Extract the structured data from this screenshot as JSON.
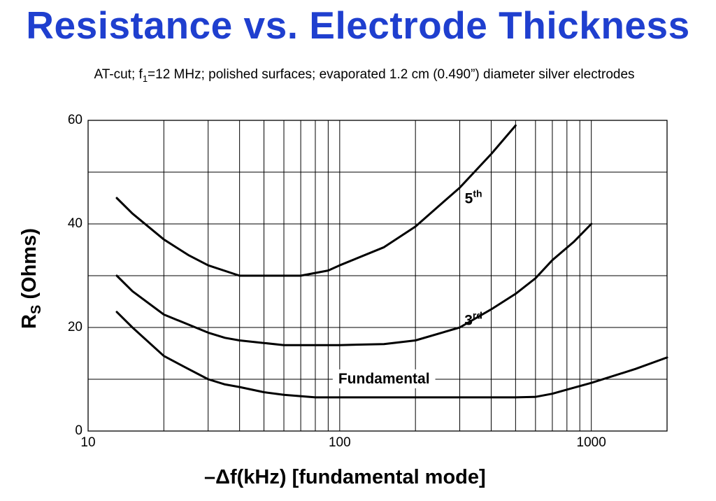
{
  "title": "Resistance vs. Electrode Thickness",
  "subtitle": {
    "before": "AT-cut; f",
    "sub": "1",
    "after": "=12 MHz; polished surfaces; evaporated 1.2 cm (0.490”) diameter silver electrodes"
  },
  "chart_data": {
    "type": "line",
    "title": "Resistance vs. Electrode Thickness",
    "xlabel": "–Δf(kHz) [fundamental mode]",
    "ylabel": "R_S (Ohms)",
    "ylabel_main": "R",
    "ylabel_sub": "S",
    "ylabel_rest": " (Ohms)",
    "xscale": "log",
    "xlim": [
      10,
      2000
    ],
    "ylim": [
      0,
      60
    ],
    "xticks": [
      {
        "value": 10,
        "label": "10"
      },
      {
        "value": 100,
        "label": "100"
      },
      {
        "value": 1000,
        "label": "1000"
      }
    ],
    "yticks": [
      {
        "value": 0,
        "label": "0"
      },
      {
        "value": 20,
        "label": "20"
      },
      {
        "value": 40,
        "label": "40"
      },
      {
        "value": 60,
        "label": "60"
      }
    ],
    "grid": true,
    "series": [
      {
        "name": "5th",
        "label_main": "5",
        "label_sup": "th",
        "label_at": [
          340,
          44
        ],
        "points": [
          [
            13,
            45
          ],
          [
            15,
            42
          ],
          [
            20,
            37
          ],
          [
            25,
            34
          ],
          [
            30,
            32
          ],
          [
            40,
            30
          ],
          [
            50,
            30
          ],
          [
            70,
            30
          ],
          [
            90,
            31
          ],
          [
            100,
            32
          ],
          [
            150,
            35.5
          ],
          [
            200,
            39.5
          ],
          [
            300,
            47
          ],
          [
            400,
            53.5
          ],
          [
            500,
            59
          ]
        ]
      },
      {
        "name": "3rd",
        "label_main": "3",
        "label_sup": "rd",
        "label_at": [
          340,
          20.5
        ],
        "points": [
          [
            13,
            30
          ],
          [
            15,
            27
          ],
          [
            20,
            22.5
          ],
          [
            30,
            19
          ],
          [
            35,
            18
          ],
          [
            40,
            17.5
          ],
          [
            50,
            17
          ],
          [
            60,
            16.6
          ],
          [
            80,
            16.6
          ],
          [
            100,
            16.6
          ],
          [
            150,
            16.8
          ],
          [
            200,
            17.5
          ],
          [
            300,
            20
          ],
          [
            400,
            23.5
          ],
          [
            500,
            26.5
          ],
          [
            600,
            29.5
          ],
          [
            700,
            33
          ],
          [
            850,
            36.5
          ],
          [
            1000,
            40
          ]
        ]
      },
      {
        "name": "Fundamental",
        "label_main": "Fundamental",
        "label_sup": "",
        "label_at": [
          150,
          9.2
        ],
        "points": [
          [
            13,
            23
          ],
          [
            15,
            20
          ],
          [
            20,
            14.5
          ],
          [
            25,
            12
          ],
          [
            30,
            10
          ],
          [
            35,
            9
          ],
          [
            40,
            8.5
          ],
          [
            50,
            7.5
          ],
          [
            60,
            7
          ],
          [
            80,
            6.5
          ],
          [
            100,
            6.5
          ],
          [
            200,
            6.5
          ],
          [
            400,
            6.5
          ],
          [
            500,
            6.5
          ],
          [
            600,
            6.6
          ],
          [
            700,
            7.2
          ],
          [
            800,
            8
          ],
          [
            1000,
            9.3
          ],
          [
            1500,
            12
          ],
          [
            2000,
            14.2
          ]
        ]
      }
    ]
  }
}
